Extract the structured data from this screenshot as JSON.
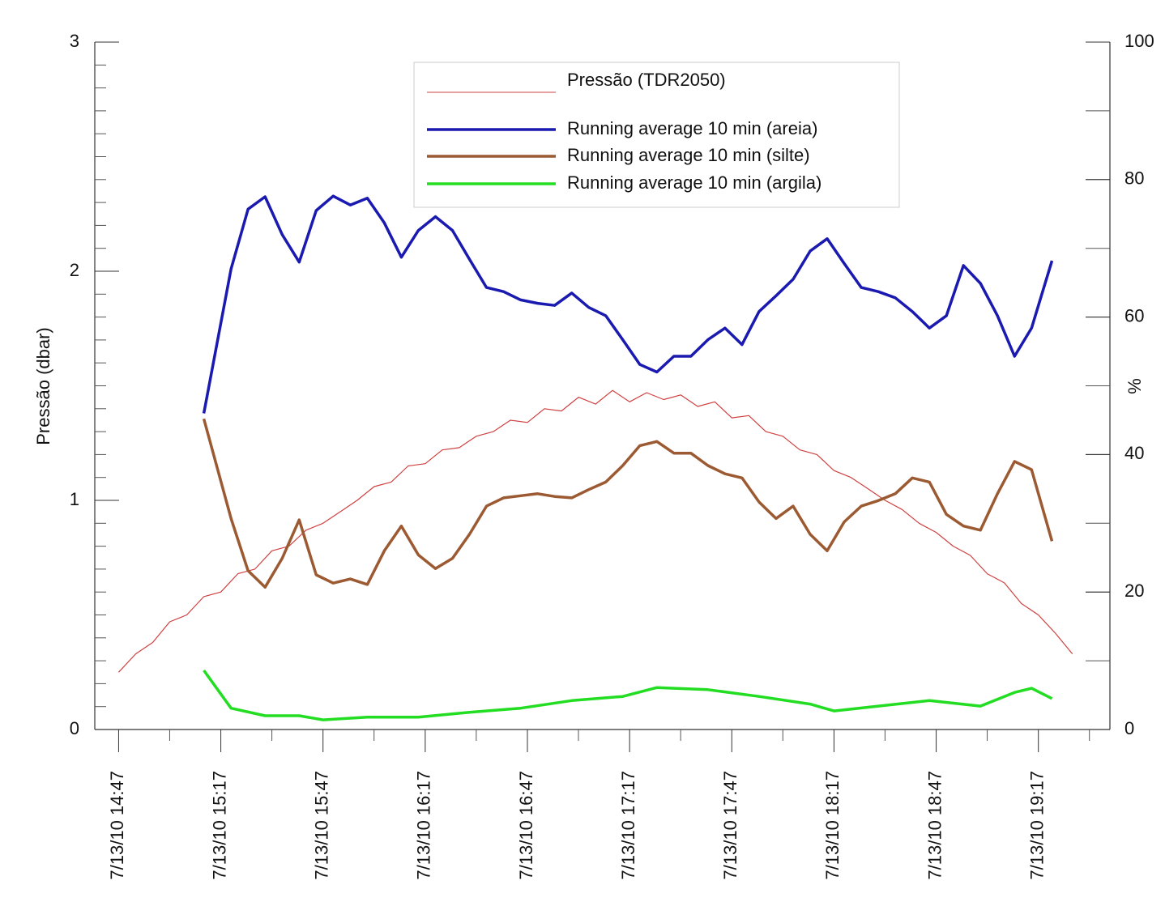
{
  "chart_data": {
    "type": "line",
    "y_label": "Pressão (dbar)",
    "y2_label": "%",
    "xlim": [
      "7/13/10 14:40",
      "7/13/10 19:38"
    ],
    "xticks": [
      "7/13/10 14:47",
      "7/13/10 15:17",
      "7/13/10 15:47",
      "7/13/10 16:17",
      "7/13/10 16:47",
      "7/13/10 17:17",
      "7/13/10 17:47",
      "7/13/10 18:17",
      "7/13/10 18:47",
      "7/13/10 19:17"
    ],
    "ylim": [
      0,
      3
    ],
    "yticks": [
      0,
      1,
      2,
      3
    ],
    "y2lim": [
      0,
      100
    ],
    "y2ticks": [
      0,
      20,
      40,
      60,
      80,
      100
    ],
    "legend": "top-center",
    "series": [
      {
        "name": "Pressão (TDR2050)",
        "color": "#d04040",
        "axis": "y",
        "x": [
          "7/13/10 14:47",
          "7/13/10 14:52",
          "7/13/10 14:57",
          "7/13/10 15:02",
          "7/13/10 15:07",
          "7/13/10 15:12",
          "7/13/10 15:17",
          "7/13/10 15:22",
          "7/13/10 15:27",
          "7/13/10 15:32",
          "7/13/10 15:37",
          "7/13/10 15:42",
          "7/13/10 15:47",
          "7/13/10 15:52",
          "7/13/10 15:57",
          "7/13/10 16:02",
          "7/13/10 16:07",
          "7/13/10 16:12",
          "7/13/10 16:17",
          "7/13/10 16:22",
          "7/13/10 16:27",
          "7/13/10 16:32",
          "7/13/10 16:37",
          "7/13/10 16:42",
          "7/13/10 16:47",
          "7/13/10 16:52",
          "7/13/10 16:57",
          "7/13/10 17:02",
          "7/13/10 17:07",
          "7/13/10 17:12",
          "7/13/10 17:17",
          "7/13/10 17:22",
          "7/13/10 17:27",
          "7/13/10 17:32",
          "7/13/10 17:37",
          "7/13/10 17:42",
          "7/13/10 17:47",
          "7/13/10 17:52",
          "7/13/10 17:57",
          "7/13/10 18:02",
          "7/13/10 18:07",
          "7/13/10 18:12",
          "7/13/10 18:17",
          "7/13/10 18:22",
          "7/13/10 18:27",
          "7/13/10 18:32",
          "7/13/10 18:37",
          "7/13/10 18:42",
          "7/13/10 18:47",
          "7/13/10 18:52",
          "7/13/10 18:57",
          "7/13/10 19:02",
          "7/13/10 19:07",
          "7/13/10 19:12",
          "7/13/10 19:17",
          "7/13/10 19:22",
          "7/13/10 19:27"
        ],
        "values": [
          0.25,
          0.33,
          0.38,
          0.47,
          0.5,
          0.58,
          0.6,
          0.68,
          0.7,
          0.78,
          0.8,
          0.87,
          0.9,
          0.95,
          1.0,
          1.06,
          1.08,
          1.15,
          1.16,
          1.22,
          1.23,
          1.28,
          1.3,
          1.35,
          1.34,
          1.4,
          1.39,
          1.45,
          1.42,
          1.48,
          1.43,
          1.47,
          1.44,
          1.46,
          1.41,
          1.43,
          1.36,
          1.37,
          1.3,
          1.28,
          1.22,
          1.2,
          1.13,
          1.1,
          1.05,
          1.0,
          0.96,
          0.9,
          0.86,
          0.8,
          0.76,
          0.68,
          0.64,
          0.55,
          0.5,
          0.42,
          0.33
        ]
      },
      {
        "name": "Running average 10 min (areia)",
        "color": "#1a1ab0",
        "axis": "y2",
        "x": [
          "7/13/10 15:12",
          "7/13/10 15:20",
          "7/13/10 15:25",
          "7/13/10 15:30",
          "7/13/10 15:35",
          "7/13/10 15:40",
          "7/13/10 15:45",
          "7/13/10 15:50",
          "7/13/10 15:55",
          "7/13/10 16:00",
          "7/13/10 16:05",
          "7/13/10 16:10",
          "7/13/10 16:15",
          "7/13/10 16:20",
          "7/13/10 16:25",
          "7/13/10 16:30",
          "7/13/10 16:35",
          "7/13/10 16:40",
          "7/13/10 16:45",
          "7/13/10 16:50",
          "7/13/10 16:55",
          "7/13/10 17:00",
          "7/13/10 17:05",
          "7/13/10 17:10",
          "7/13/10 17:15",
          "7/13/10 17:20",
          "7/13/10 17:25",
          "7/13/10 17:30",
          "7/13/10 17:35",
          "7/13/10 17:40",
          "7/13/10 17:45",
          "7/13/10 17:50",
          "7/13/10 17:55",
          "7/13/10 18:00",
          "7/13/10 18:05",
          "7/13/10 18:10",
          "7/13/10 18:15",
          "7/13/10 18:20",
          "7/13/10 18:25",
          "7/13/10 18:30",
          "7/13/10 18:35",
          "7/13/10 18:40",
          "7/13/10 18:45",
          "7/13/10 18:50",
          "7/13/10 18:55",
          "7/13/10 19:00",
          "7/13/10 19:05",
          "7/13/10 19:10",
          "7/13/10 19:15",
          "7/13/10 19:21"
        ],
        "values": [
          46,
          67,
          75.7,
          77.5,
          72,
          68,
          75.5,
          77.6,
          76.3,
          77.3,
          73.7,
          68.7,
          72.6,
          74.6,
          72.6,
          68.4,
          64.3,
          63.7,
          62.5,
          62,
          61.7,
          63.5,
          61.4,
          60.2,
          56.7,
          53.1,
          52,
          54.3,
          54.3,
          56.7,
          58.4,
          56,
          60.8,
          63.1,
          65.5,
          69.6,
          71.4,
          67.8,
          64.3,
          63.7,
          62.8,
          60.8,
          58.4,
          60.2,
          67.5,
          64.9,
          60.2,
          54.3,
          58.4,
          68.2
        ]
      },
      {
        "name": "Running average 10 min (silte)",
        "color": "#9c5a32",
        "axis": "y2",
        "x": [
          "7/13/10 15:12",
          "7/13/10 15:20",
          "7/13/10 15:25",
          "7/13/10 15:30",
          "7/13/10 15:35",
          "7/13/10 15:40",
          "7/13/10 15:45",
          "7/13/10 15:50",
          "7/13/10 15:55",
          "7/13/10 16:00",
          "7/13/10 16:05",
          "7/13/10 16:10",
          "7/13/10 16:15",
          "7/13/10 16:20",
          "7/13/10 16:25",
          "7/13/10 16:30",
          "7/13/10 16:35",
          "7/13/10 16:40",
          "7/13/10 16:45",
          "7/13/10 16:50",
          "7/13/10 16:55",
          "7/13/10 17:00",
          "7/13/10 17:05",
          "7/13/10 17:10",
          "7/13/10 17:15",
          "7/13/10 17:20",
          "7/13/10 17:25",
          "7/13/10 17:30",
          "7/13/10 17:35",
          "7/13/10 17:40",
          "7/13/10 17:45",
          "7/13/10 17:50",
          "7/13/10 17:55",
          "7/13/10 18:00",
          "7/13/10 18:05",
          "7/13/10 18:10",
          "7/13/10 18:15",
          "7/13/10 18:20",
          "7/13/10 18:25",
          "7/13/10 18:30",
          "7/13/10 18:35",
          "7/13/10 18:40",
          "7/13/10 18:45",
          "7/13/10 18:50",
          "7/13/10 18:55",
          "7/13/10 19:00",
          "7/13/10 19:05",
          "7/13/10 19:10",
          "7/13/10 19:15",
          "7/13/10 19:21"
        ],
        "values": [
          45.2,
          30.7,
          23.1,
          20.7,
          24.9,
          30.5,
          22.5,
          21.3,
          21.9,
          21.1,
          26,
          29.6,
          25.4,
          23.4,
          24.9,
          28.4,
          32.5,
          33.7,
          34,
          34.3,
          33.9,
          33.7,
          34.9,
          36,
          38.4,
          41.3,
          41.9,
          40.2,
          40.2,
          38.4,
          37.2,
          36.6,
          33.1,
          30.7,
          32.5,
          28.4,
          26,
          30.2,
          32.5,
          33.3,
          34.3,
          36.6,
          36,
          31.3,
          29.6,
          29,
          34.3,
          39,
          37.8,
          27.4
        ]
      },
      {
        "name": "Running average 10 min (argila)",
        "color": "#22dd22",
        "axis": "y2",
        "x": [
          "7/13/10 15:12",
          "7/13/10 15:20",
          "7/13/10 15:30",
          "7/13/10 15:40",
          "7/13/10 15:47",
          "7/13/10 16:00",
          "7/13/10 16:15",
          "7/13/10 16:30",
          "7/13/10 16:45",
          "7/13/10 17:00",
          "7/13/10 17:15",
          "7/13/10 17:25",
          "7/13/10 17:40",
          "7/13/10 17:55",
          "7/13/10 18:10",
          "7/13/10 18:17",
          "7/13/10 18:30",
          "7/13/10 18:45",
          "7/13/10 19:00",
          "7/13/10 19:10",
          "7/13/10 19:15",
          "7/13/10 19:21"
        ],
        "values": [
          8.6,
          3.1,
          2,
          2,
          1.4,
          1.8,
          1.8,
          2.5,
          3.1,
          4.2,
          4.8,
          6.1,
          5.8,
          4.8,
          3.7,
          2.7,
          3.4,
          4.2,
          3.4,
          5.4,
          6,
          4.5
        ]
      }
    ]
  }
}
